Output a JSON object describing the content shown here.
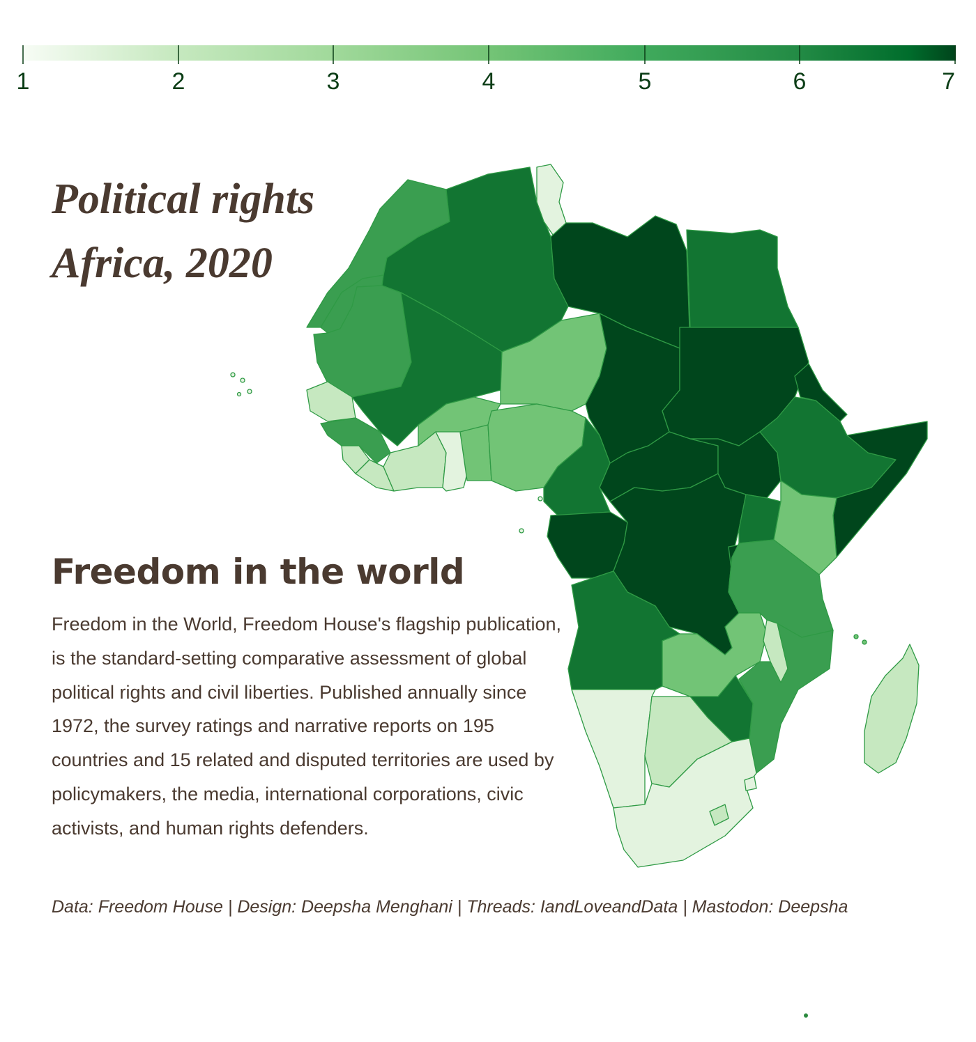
{
  "legend": {
    "ticks": [
      "1",
      "2",
      "3",
      "4",
      "5",
      "6",
      "7"
    ],
    "colors": [
      "#f7fcf5",
      "#c7e9c0",
      "#a1d99b",
      "#74c476",
      "#41ab5d",
      "#238b45",
      "#006d2c",
      "#00441b"
    ]
  },
  "title": {
    "line1": "Political rights",
    "line2": "Africa, 2020"
  },
  "heading": "Freedom in the world",
  "body": "Freedom in the World, Freedom House's flagship publication, is the standard-setting comparative assessment of global political rights and civil liberties. Published annually since 1972, the survey ratings and narrative reports on 195 countries and 15 related and disputed territories are used by policymakers, the media, international corporations, civic activists, and human rights defenders.",
  "credits": "Data: Freedom House | Design: Deepsha Menghani | Threads: IandLoveandData | Mastodon: Deepsha",
  "map_colors": {
    "r1": "#e3f3df",
    "r2": "#c6e8c0",
    "r3": "#72c476",
    "r4": "#3a9e50",
    "r5": "#127532",
    "r6": "#00461c",
    "border": "#2f9a45"
  }
}
